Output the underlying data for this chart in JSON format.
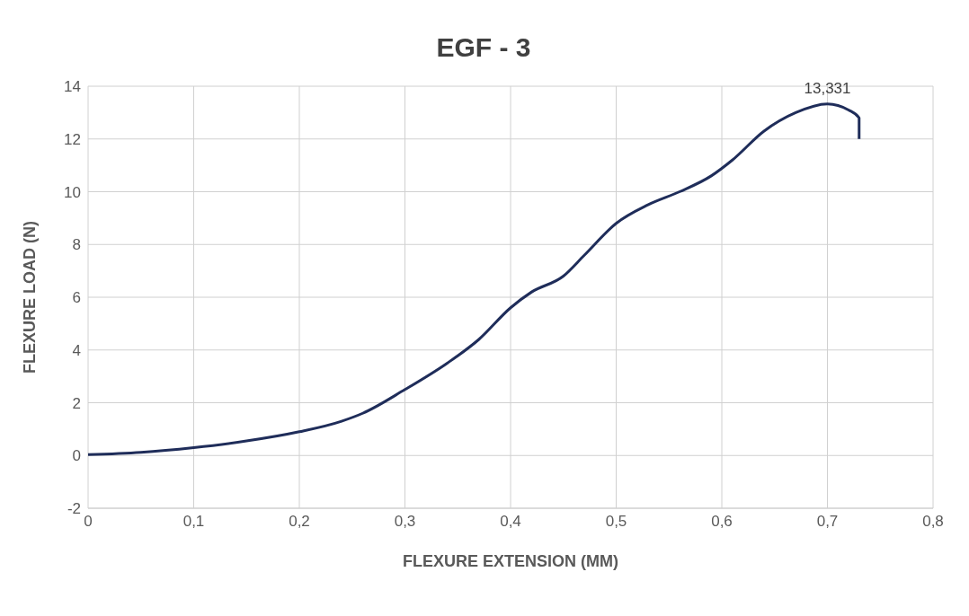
{
  "chart_data": {
    "type": "line",
    "title": "EGF - 3",
    "xlabel": "FLEXURE EXTENSION (MM)",
    "ylabel": "FLEXURE LOAD (N)",
    "x": [
      0,
      0.05,
      0.1,
      0.15,
      0.2,
      0.24,
      0.26,
      0.3,
      0.34,
      0.37,
      0.4,
      0.42,
      0.45,
      0.47,
      0.5,
      0.53,
      0.56,
      0.59,
      0.61,
      0.64,
      0.67,
      0.7,
      0.72,
      0.73,
      0.73
    ],
    "series": [
      {
        "color": "#1f2d5a",
        "values": [
          0.03,
          0.12,
          0.3,
          0.55,
          0.9,
          1.3,
          1.6,
          2.5,
          3.5,
          4.4,
          5.6,
          6.2,
          6.8,
          7.6,
          8.8,
          9.5,
          10.0,
          10.6,
          11.2,
          12.3,
          13.0,
          13.331,
          13.1,
          12.8,
          12.0
        ]
      }
    ],
    "annotations": [
      {
        "text": "13,331",
        "x": 0.7,
        "y": 13.331
      }
    ],
    "xlim": [
      0,
      0.8
    ],
    "xticks": [
      0,
      {
        "value": 0.1,
        "label": "0,1"
      },
      {
        "value": 0.2,
        "label": "0,2"
      },
      {
        "value": 0.3,
        "label": "0,3"
      },
      {
        "value": 0.4,
        "label": "0,4"
      },
      {
        "value": 0.5,
        "label": "0,5"
      },
      {
        "value": 0.6,
        "label": "0,6"
      },
      {
        "value": 0.7,
        "label": "0,7"
      },
      {
        "value": 0.8,
        "label": "0,8"
      }
    ],
    "ylim": [
      -2,
      14
    ],
    "yticks": [
      -2,
      0,
      2,
      4,
      6,
      8,
      10,
      12,
      14
    ],
    "grid": true,
    "marker": "none",
    "line_style": "solid"
  }
}
